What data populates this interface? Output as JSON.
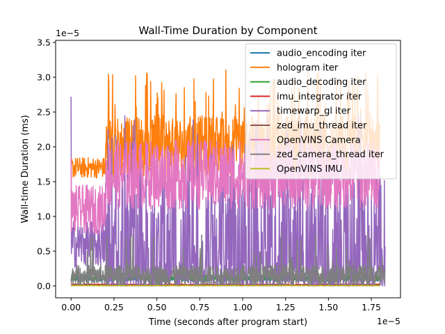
{
  "chart_data": {
    "type": "line",
    "title": "Wall-Time Duration by Component",
    "xlabel": "Time (seconds after program start)",
    "ylabel": "Wall-time Duration (ms)",
    "x_offset_text": "1e−5",
    "y_offset_text": "1e−5",
    "xlim": [
      -0.09,
      1.92
    ],
    "ylim": [
      -0.17,
      3.53
    ],
    "x_ticks": [
      "0.00",
      "0.25",
      "0.50",
      "0.75",
      "1.00",
      "1.25",
      "1.50",
      "1.75"
    ],
    "y_ticks": [
      "0.0",
      "0.5",
      "1.0",
      "1.5",
      "2.0",
      "2.5",
      "3.0",
      "3.5"
    ],
    "grid": false,
    "legend_position": "upper right",
    "series": [
      {
        "name": "audio_encoding iter",
        "color": "#1f77b4",
        "x": [
          0,
          1.8
        ],
        "baseline": 0.1,
        "noise": 0.03
      },
      {
        "name": "hologram iter",
        "color": "#ff7f0e",
        "x": [
          0,
          1.8
        ],
        "segments": [
          [
            0,
            0.2,
            1.7,
            0.15
          ],
          [
            0.2,
            1.8,
            2.0,
            0.45
          ]
        ],
        "spikes_max": 3.12
      },
      {
        "name": "audio_decoding iter",
        "color": "#2ca02c",
        "x": [
          0,
          1.8
        ],
        "baseline": 0.12,
        "noise": 0.04
      },
      {
        "name": "imu_integrator iter",
        "color": "#d62728",
        "x": [
          0,
          1.8
        ],
        "baseline": 0.02,
        "noise": 0.01
      },
      {
        "name": "timewarp_gl iter",
        "color": "#9467bd",
        "x": [
          0,
          1.83
        ],
        "segments": [
          [
            0,
            0.2,
            0.6,
            0.35
          ],
          [
            0.2,
            1.82,
            0.6,
            1.1
          ]
        ],
        "start_spike": 2.72,
        "spikes_max": 2.5
      },
      {
        "name": "zed_imu_thread iter",
        "color": "#8c564b",
        "x": [
          0,
          1.8
        ],
        "baseline": 0.01,
        "noise": 0.005
      },
      {
        "name": "OpenVINS Camera",
        "color": "#e377c2",
        "x": [
          0,
          1.8
        ],
        "segments": [
          [
            0,
            0.2,
            1.1,
            0.35
          ],
          [
            0.2,
            1.8,
            1.6,
            0.5
          ]
        ],
        "start_spike": 1.85
      },
      {
        "name": "zed_camera_thread iter",
        "color": "#7f7f7f",
        "x": [
          0,
          1.83
        ],
        "baseline": 0.15,
        "noise": 0.15,
        "spikes_max": 1.4
      },
      {
        "name": "OpenVINS IMU",
        "color": "#bcbd22",
        "x": [
          0,
          1.8
        ],
        "baseline": 0.005,
        "noise": 0.003
      }
    ]
  }
}
